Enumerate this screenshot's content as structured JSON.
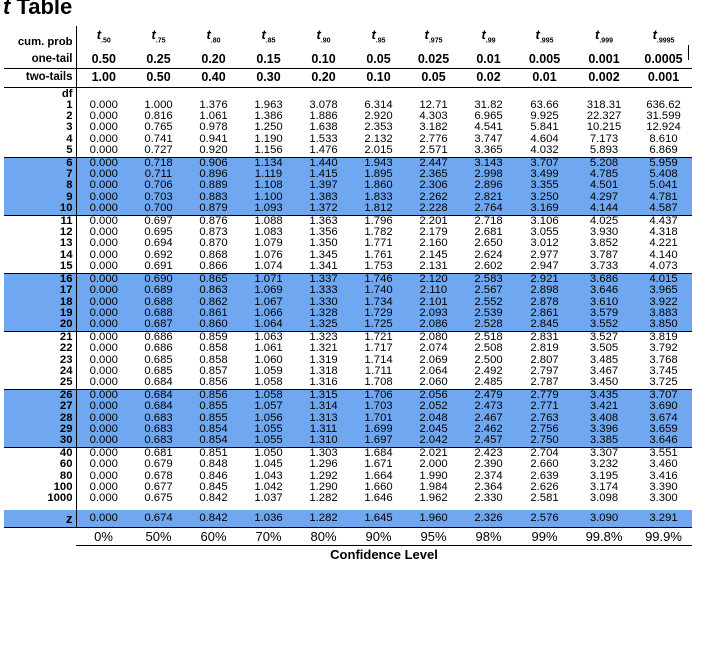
{
  "title": {
    "italic": "t",
    "rest": " Table"
  },
  "header_labels": {
    "cum": "cum. prob",
    "one": "one-tail",
    "two": "two-tails",
    "df": "df"
  },
  "t_subscripts": [
    ".50",
    ".75",
    ".80",
    ".85",
    ".90",
    ".95",
    ".975",
    ".99",
    ".995",
    ".999",
    ".9995"
  ],
  "one_tail": [
    "0.50",
    "0.25",
    "0.20",
    "0.15",
    "0.10",
    "0.05",
    "0.025",
    "0.01",
    "0.005",
    "0.001",
    "0.0005"
  ],
  "two_tails": [
    "1.00",
    "0.50",
    "0.40",
    "0.30",
    "0.20",
    "0.10",
    "0.05",
    "0.02",
    "0.01",
    "0.002",
    "0.001"
  ],
  "rows": [
    {
      "df": "1",
      "v": [
        "0.000",
        "1.000",
        "1.376",
        "1.963",
        "3.078",
        "6.314",
        "12.71",
        "31.82",
        "63.66",
        "318.31",
        "636.62"
      ]
    },
    {
      "df": "2",
      "v": [
        "0.000",
        "0.816",
        "1.061",
        "1.386",
        "1.886",
        "2.920",
        "4.303",
        "6.965",
        "9.925",
        "22.327",
        "31.599"
      ]
    },
    {
      "df": "3",
      "v": [
        "0.000",
        "0.765",
        "0.978",
        "1.250",
        "1.638",
        "2.353",
        "3.182",
        "4.541",
        "5.841",
        "10.215",
        "12.924"
      ]
    },
    {
      "df": "4",
      "v": [
        "0.000",
        "0.741",
        "0.941",
        "1.190",
        "1.533",
        "2.132",
        "2.776",
        "3.747",
        "4.604",
        "7.173",
        "8.610"
      ]
    },
    {
      "df": "5",
      "v": [
        "0.000",
        "0.727",
        "0.920",
        "1.156",
        "1.476",
        "2.015",
        "2.571",
        "3.365",
        "4.032",
        "5.893",
        "6.869"
      ]
    },
    {
      "df": "6",
      "v": [
        "0.000",
        "0.718",
        "0.906",
        "1.134",
        "1.440",
        "1.943",
        "2.447",
        "3.143",
        "3.707",
        "5.208",
        "5.959"
      ]
    },
    {
      "df": "7",
      "v": [
        "0.000",
        "0.711",
        "0.896",
        "1.119",
        "1.415",
        "1.895",
        "2.365",
        "2.998",
        "3.499",
        "4.785",
        "5.408"
      ]
    },
    {
      "df": "8",
      "v": [
        "0.000",
        "0.706",
        "0.889",
        "1.108",
        "1.397",
        "1.860",
        "2.306",
        "2.896",
        "3.355",
        "4.501",
        "5.041"
      ]
    },
    {
      "df": "9",
      "v": [
        "0.000",
        "0.703",
        "0.883",
        "1.100",
        "1.383",
        "1.833",
        "2.262",
        "2.821",
        "3.250",
        "4.297",
        "4.781"
      ]
    },
    {
      "df": "10",
      "v": [
        "0.000",
        "0.700",
        "0.879",
        "1.093",
        "1.372",
        "1.812",
        "2.228",
        "2.764",
        "3.169",
        "4.144",
        "4.587"
      ]
    },
    {
      "df": "11",
      "v": [
        "0.000",
        "0.697",
        "0.876",
        "1.088",
        "1.363",
        "1.796",
        "2.201",
        "2.718",
        "3.106",
        "4.025",
        "4.437"
      ]
    },
    {
      "df": "12",
      "v": [
        "0.000",
        "0.695",
        "0.873",
        "1.083",
        "1.356",
        "1.782",
        "2.179",
        "2.681",
        "3.055",
        "3.930",
        "4.318"
      ]
    },
    {
      "df": "13",
      "v": [
        "0.000",
        "0.694",
        "0.870",
        "1.079",
        "1.350",
        "1.771",
        "2.160",
        "2.650",
        "3.012",
        "3.852",
        "4.221"
      ]
    },
    {
      "df": "14",
      "v": [
        "0.000",
        "0.692",
        "0.868",
        "1.076",
        "1.345",
        "1.761",
        "2.145",
        "2.624",
        "2.977",
        "3.787",
        "4.140"
      ]
    },
    {
      "df": "15",
      "v": [
        "0.000",
        "0.691",
        "0.866",
        "1.074",
        "1.341",
        "1.753",
        "2.131",
        "2.602",
        "2.947",
        "3.733",
        "4.073"
      ]
    },
    {
      "df": "16",
      "v": [
        "0.000",
        "0.690",
        "0.865",
        "1.071",
        "1.337",
        "1.746",
        "2.120",
        "2.583",
        "2.921",
        "3.686",
        "4.015"
      ]
    },
    {
      "df": "17",
      "v": [
        "0.000",
        "0.689",
        "0.863",
        "1.069",
        "1.333",
        "1.740",
        "2.110",
        "2.567",
        "2.898",
        "3.646",
        "3.965"
      ]
    },
    {
      "df": "18",
      "v": [
        "0.000",
        "0.688",
        "0.862",
        "1.067",
        "1.330",
        "1.734",
        "2.101",
        "2.552",
        "2.878",
        "3.610",
        "3.922"
      ]
    },
    {
      "df": "19",
      "v": [
        "0.000",
        "0.688",
        "0.861",
        "1.066",
        "1.328",
        "1.729",
        "2.093",
        "2.539",
        "2.861",
        "3.579",
        "3.883"
      ]
    },
    {
      "df": "20",
      "v": [
        "0.000",
        "0.687",
        "0.860",
        "1.064",
        "1.325",
        "1.725",
        "2.086",
        "2.528",
        "2.845",
        "3.552",
        "3.850"
      ]
    },
    {
      "df": "21",
      "v": [
        "0.000",
        "0.686",
        "0.859",
        "1.063",
        "1.323",
        "1.721",
        "2.080",
        "2.518",
        "2.831",
        "3.527",
        "3.819"
      ]
    },
    {
      "df": "22",
      "v": [
        "0.000",
        "0.686",
        "0.858",
        "1.061",
        "1.321",
        "1.717",
        "2.074",
        "2.508",
        "2.819",
        "3.505",
        "3.792"
      ]
    },
    {
      "df": "23",
      "v": [
        "0.000",
        "0.685",
        "0.858",
        "1.060",
        "1.319",
        "1.714",
        "2.069",
        "2.500",
        "2.807",
        "3.485",
        "3.768"
      ]
    },
    {
      "df": "24",
      "v": [
        "0.000",
        "0.685",
        "0.857",
        "1.059",
        "1.318",
        "1.711",
        "2.064",
        "2.492",
        "2.797",
        "3.467",
        "3.745"
      ]
    },
    {
      "df": "25",
      "v": [
        "0.000",
        "0.684",
        "0.856",
        "1.058",
        "1.316",
        "1.708",
        "2.060",
        "2.485",
        "2.787",
        "3.450",
        "3.725"
      ]
    },
    {
      "df": "26",
      "v": [
        "0.000",
        "0.684",
        "0.856",
        "1.058",
        "1.315",
        "1.706",
        "2.056",
        "2.479",
        "2.779",
        "3.435",
        "3.707"
      ]
    },
    {
      "df": "27",
      "v": [
        "0.000",
        "0.684",
        "0.855",
        "1.057",
        "1.314",
        "1.703",
        "2.052",
        "2.473",
        "2.771",
        "3.421",
        "3.690"
      ]
    },
    {
      "df": "28",
      "v": [
        "0.000",
        "0.683",
        "0.855",
        "1.056",
        "1.313",
        "1.701",
        "2.048",
        "2.467",
        "2.763",
        "3.408",
        "3.674"
      ]
    },
    {
      "df": "29",
      "v": [
        "0.000",
        "0.683",
        "0.854",
        "1.055",
        "1.311",
        "1.699",
        "2.045",
        "2.462",
        "2.756",
        "3.396",
        "3.659"
      ]
    },
    {
      "df": "30",
      "v": [
        "0.000",
        "0.683",
        "0.854",
        "1.055",
        "1.310",
        "1.697",
        "2.042",
        "2.457",
        "2.750",
        "3.385",
        "3.646"
      ]
    },
    {
      "df": "40",
      "v": [
        "0.000",
        "0.681",
        "0.851",
        "1.050",
        "1.303",
        "1.684",
        "2.021",
        "2.423",
        "2.704",
        "3.307",
        "3.551"
      ]
    },
    {
      "df": "60",
      "v": [
        "0.000",
        "0.679",
        "0.848",
        "1.045",
        "1.296",
        "1.671",
        "2.000",
        "2.390",
        "2.660",
        "3.232",
        "3.460"
      ]
    },
    {
      "df": "80",
      "v": [
        "0.000",
        "0.678",
        "0.846",
        "1.043",
        "1.292",
        "1.664",
        "1.990",
        "2.374",
        "2.639",
        "3.195",
        "3.416"
      ]
    },
    {
      "df": "100",
      "v": [
        "0.000",
        "0.677",
        "0.845",
        "1.042",
        "1.290",
        "1.660",
        "1.984",
        "2.364",
        "2.626",
        "3.174",
        "3.390"
      ]
    },
    {
      "df": "1000",
      "v": [
        "0.000",
        "0.675",
        "0.842",
        "1.037",
        "1.282",
        "1.646",
        "1.962",
        "2.330",
        "2.581",
        "3.098",
        "3.300"
      ]
    }
  ],
  "z_row": {
    "label": "z",
    "v": [
      "0.000",
      "0.674",
      "0.842",
      "1.036",
      "1.282",
      "1.645",
      "1.960",
      "2.326",
      "2.576",
      "3.090",
      "3.291"
    ]
  },
  "confidence": [
    "0%",
    "50%",
    "60%",
    "70%",
    "80%",
    "90%",
    "95%",
    "98%",
    "99%",
    "99.8%",
    "99.9%"
  ],
  "confidence_label": "Confidence Level",
  "colors": {
    "band": "#6fa8f0"
  }
}
